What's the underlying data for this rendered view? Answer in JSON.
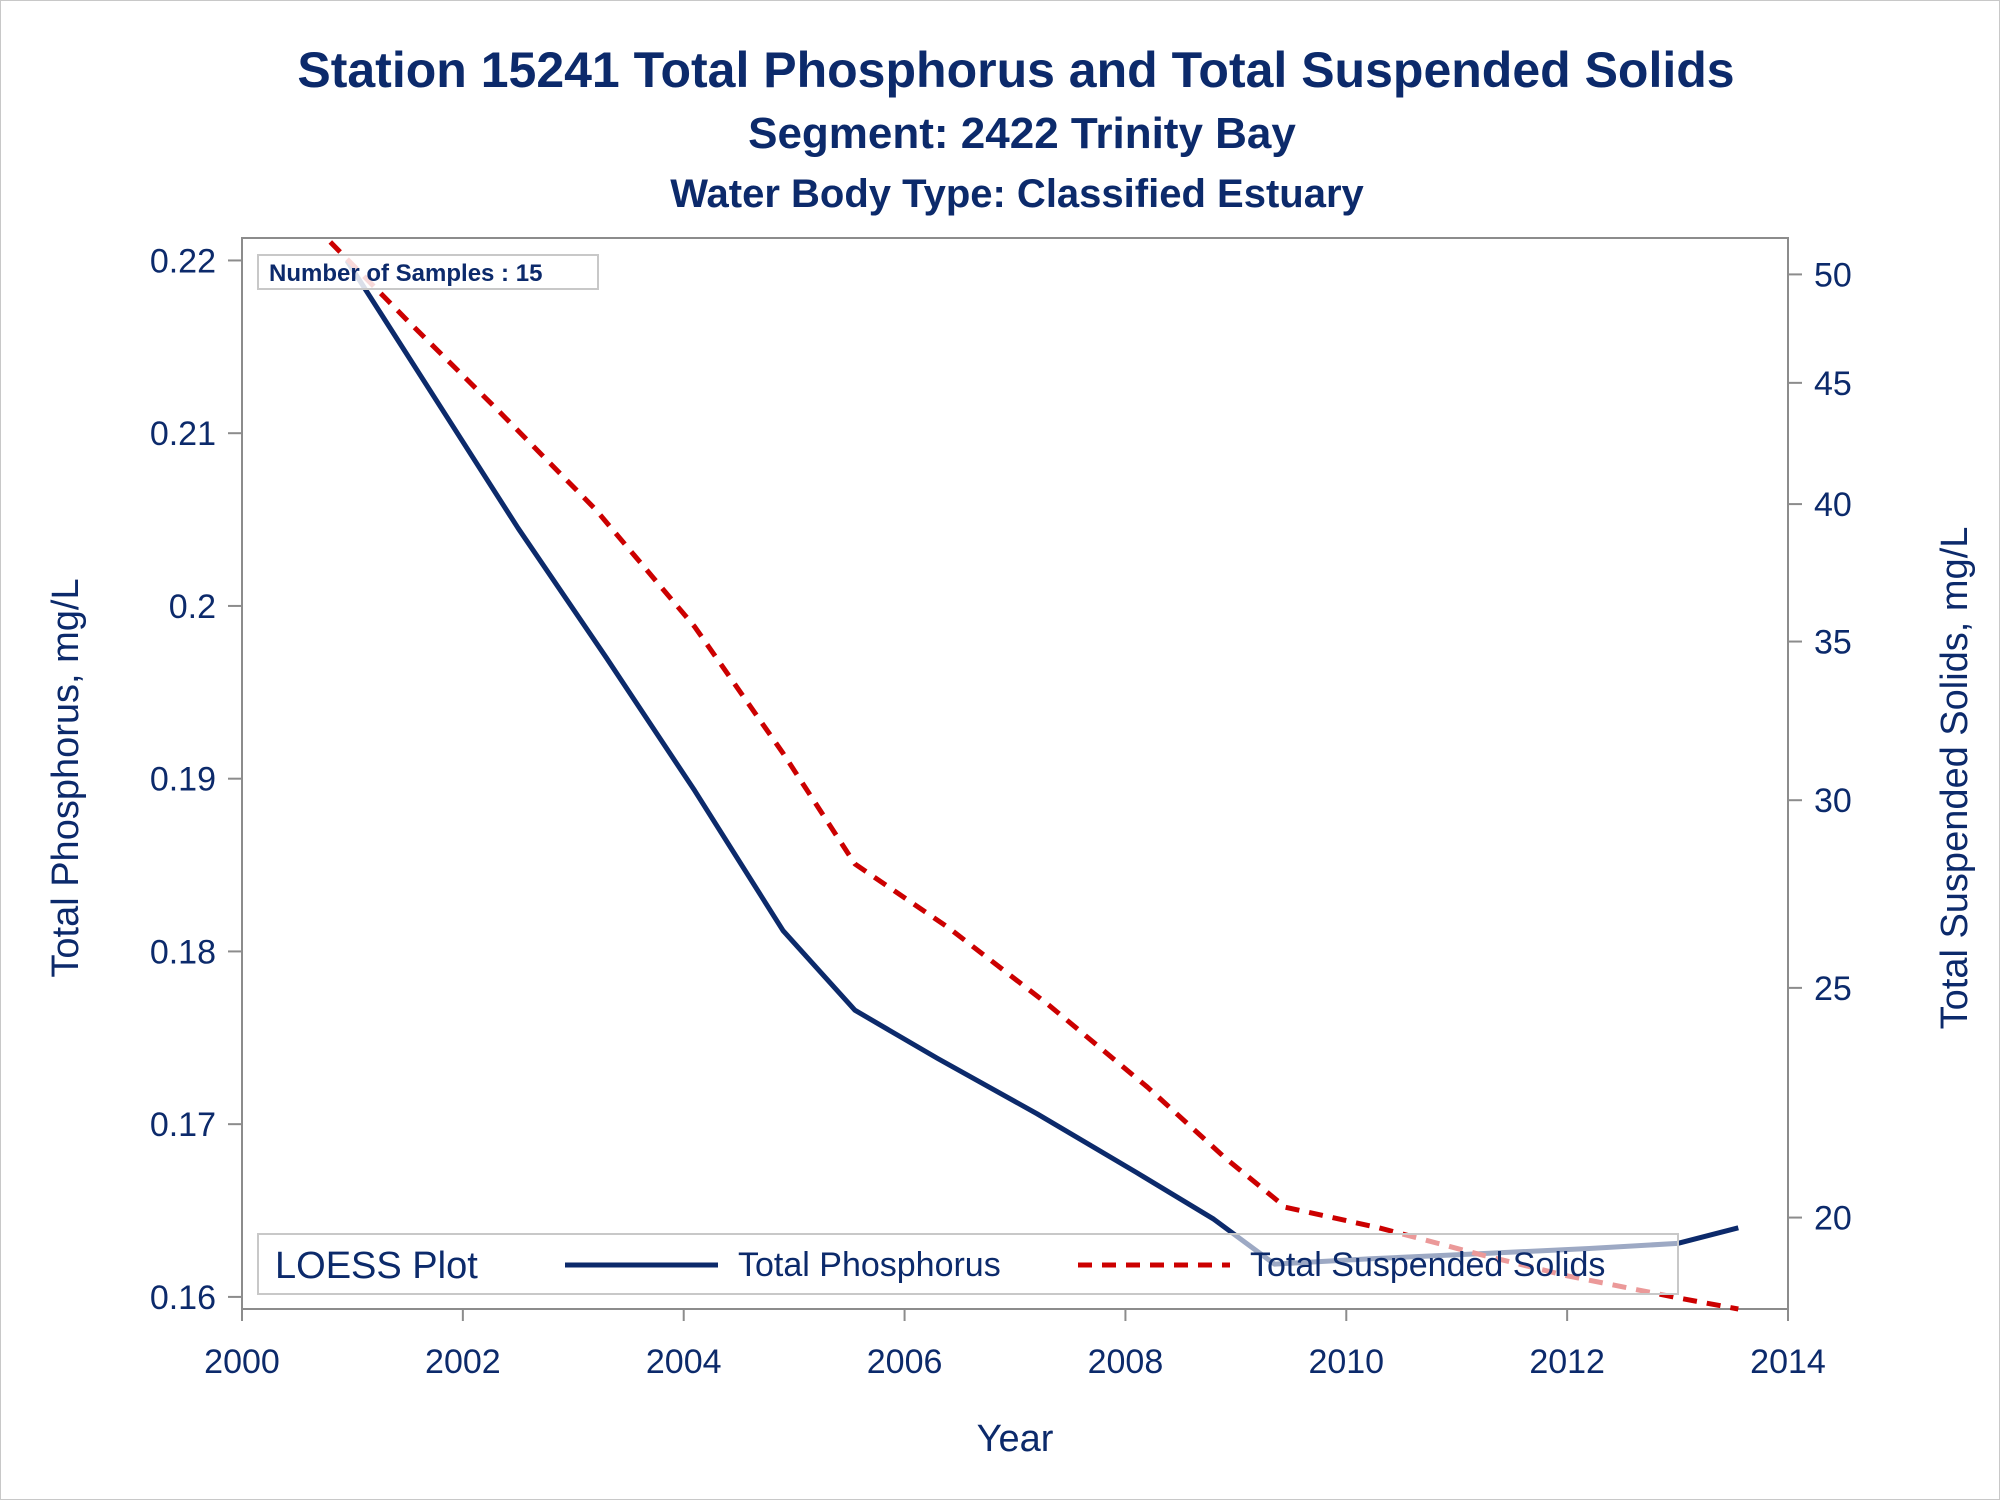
{
  "chart_data": {
    "type": "line",
    "title": "Station 15241  Total Phosphorus and Total Suspended Solids",
    "subtitle": "Segment: 2422  Trinity Bay",
    "subtitle2": "Water Body Type: Classified Estuary",
    "xlabel": "Year",
    "ylabel": "Total Phosphorus, mg/L",
    "y2label": "Total Suspended Solids, mg/L",
    "xlim": [
      2000,
      2014
    ],
    "ylim": [
      0.1593,
      0.2213
    ],
    "y2lim": [
      18.3,
      51.8
    ],
    "y2scale": "log",
    "x_ticks": [
      "2000",
      "2002",
      "2004",
      "2006",
      "2008",
      "2010",
      "2012",
      "2014"
    ],
    "y_ticks": [
      "0.16",
      "0.17",
      "0.18",
      "0.19",
      "0.2",
      "0.21",
      "0.22"
    ],
    "y2_ticks": [
      "20",
      "25",
      "30",
      "35",
      "40",
      "45",
      "50"
    ],
    "inset_label": "Number of Samples : 15",
    "legend": {
      "title": "LOESS Plot",
      "placement": "bottom-inside",
      "items": [
        "Total Phosphorus",
        "Total Suspended Solids"
      ]
    },
    "series": [
      {
        "name": "Total Phosphorus",
        "axis": "left",
        "color": "#0c2a6b",
        "style": "solid",
        "points": [
          [
            2000.95,
            0.22
          ],
          [
            2001.8,
            0.2115
          ],
          [
            2002.5,
            0.2045
          ],
          [
            2003.3,
            0.197
          ],
          [
            2004.1,
            0.1893
          ],
          [
            2004.9,
            0.1812
          ],
          [
            2005.55,
            0.1766
          ],
          [
            2006.3,
            0.1738
          ],
          [
            2007.2,
            0.1706
          ],
          [
            2008.1,
            0.1672
          ],
          [
            2008.8,
            0.1645
          ],
          [
            2009.35,
            0.1619
          ],
          [
            2010.2,
            0.1622
          ],
          [
            2011.2,
            0.1625
          ],
          [
            2012.2,
            0.1628
          ],
          [
            2013.0,
            0.1631
          ],
          [
            2013.55,
            0.164
          ]
        ]
      },
      {
        "name": "Total Suspended Solids",
        "axis": "right",
        "color": "#cc0000",
        "style": "dashed",
        "points": [
          [
            2000.8,
            51.6
          ],
          [
            2001.5,
            47.8
          ],
          [
            2002.3,
            43.9
          ],
          [
            2003.2,
            39.8
          ],
          [
            2004.1,
            35.5
          ],
          [
            2004.9,
            31.4
          ],
          [
            2005.55,
            28.2
          ],
          [
            2006.4,
            26.5
          ],
          [
            2007.3,
            24.6
          ],
          [
            2008.2,
            22.7
          ],
          [
            2008.9,
            21.2
          ],
          [
            2009.45,
            20.2
          ],
          [
            2010.3,
            19.8
          ],
          [
            2011.2,
            19.3
          ],
          [
            2012.0,
            18.9
          ],
          [
            2013.0,
            18.5
          ],
          [
            2013.55,
            18.3
          ]
        ]
      }
    ]
  }
}
